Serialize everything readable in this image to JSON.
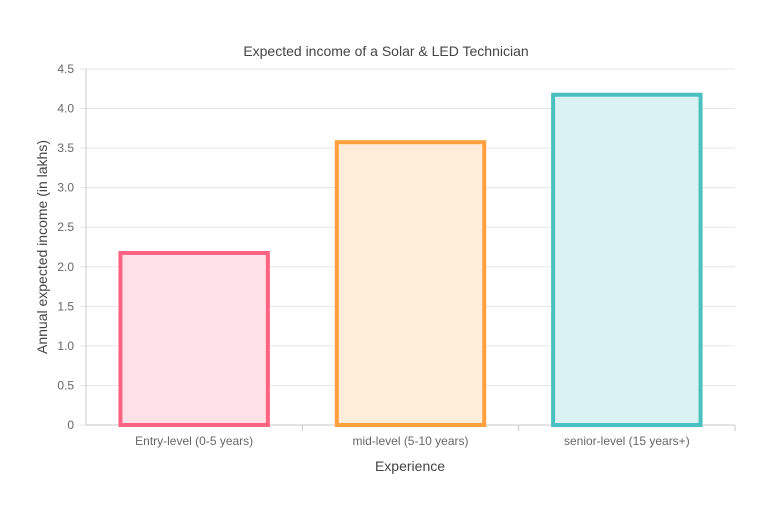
{
  "chart_data": {
    "type": "bar",
    "title": "Expected income of a Solar & LED Technician",
    "xlabel": "Experience",
    "ylabel": "Annual expected income (in lakhs)",
    "categories": [
      "Entry-level (0-5 years)",
      "mid-level (5-10 years)",
      "senior-level (15 years+)"
    ],
    "values": [
      2.2,
      3.6,
      4.2
    ],
    "ylim": [
      0,
      4.5
    ],
    "yticks": [
      "0",
      "0.5",
      "1.0",
      "1.5",
      "2.0",
      "2.5",
      "3.0",
      "3.5",
      "4.0",
      "4.5"
    ],
    "grid": true,
    "border_colors": [
      "#ff6384",
      "#ff9f40",
      "#4bc0c0"
    ],
    "fill_colors": [
      "#ffe0e6",
      "#ffecd9",
      "#dbf2f2"
    ]
  }
}
